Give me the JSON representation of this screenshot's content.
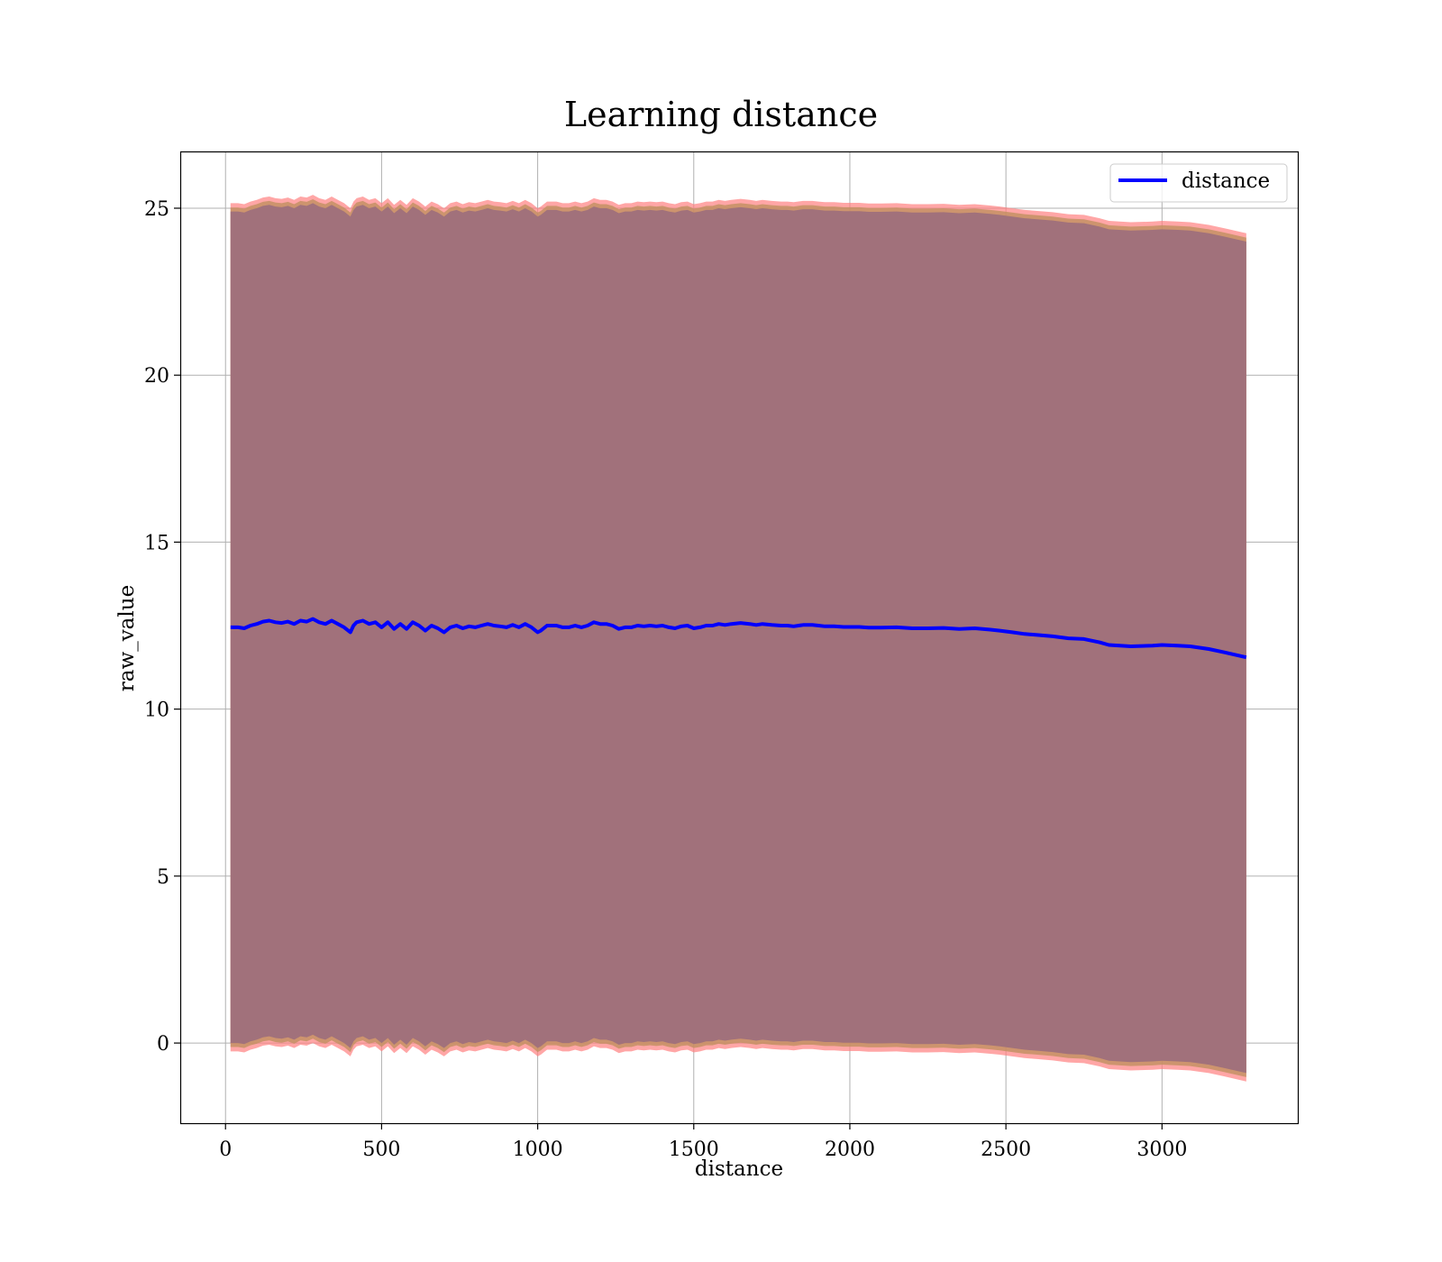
{
  "chart_data": {
    "type": "line",
    "title": "Learning distance",
    "xlabel": "distance",
    "ylabel": "raw_value",
    "xlim": [
      -145,
      3435
    ],
    "ylim": [
      -2.4,
      26.7
    ],
    "xticks": [
      0,
      500,
      1000,
      1500,
      2000,
      2500,
      3000
    ],
    "yticks": [
      0,
      5,
      10,
      15,
      20,
      25
    ],
    "grid": true,
    "legend": {
      "placement": "top-right",
      "entries": [
        "distance"
      ]
    },
    "colors": {
      "line": "#0000ff",
      "fill": "#a1717b",
      "outer_band": "#ff8080",
      "inner_band": "#c09060",
      "grid": "#b0b0b0"
    },
    "series": [
      {
        "name": "distance",
        "x": [
          16,
          40,
          60,
          80,
          100,
          120,
          140,
          160,
          180,
          200,
          220,
          240,
          260,
          280,
          300,
          320,
          340,
          360,
          380,
          400,
          410,
          420,
          440,
          460,
          480,
          500,
          520,
          540,
          560,
          580,
          600,
          620,
          640,
          660,
          680,
          700,
          720,
          740,
          760,
          780,
          800,
          820,
          840,
          860,
          880,
          900,
          920,
          940,
          960,
          980,
          1000,
          1010,
          1030,
          1060,
          1080,
          1100,
          1120,
          1140,
          1160,
          1180,
          1200,
          1220,
          1240,
          1260,
          1280,
          1300,
          1320,
          1340,
          1360,
          1380,
          1400,
          1420,
          1440,
          1460,
          1480,
          1500,
          1520,
          1540,
          1560,
          1580,
          1600,
          1620,
          1650,
          1680,
          1700,
          1720,
          1750,
          1780,
          1800,
          1820,
          1850,
          1880,
          1900,
          1920,
          1950,
          1980,
          2000,
          2030,
          2060,
          2100,
          2150,
          2200,
          2250,
          2300,
          2350,
          2400,
          2450,
          2480,
          2520,
          2560,
          2600,
          2650,
          2700,
          2750,
          2800,
          2830,
          2900,
          2970,
          3000,
          3050,
          3090,
          3150,
          3200,
          3270
        ],
        "y": [
          12.45,
          12.45,
          12.42,
          12.5,
          12.55,
          12.62,
          12.65,
          12.6,
          12.58,
          12.62,
          12.55,
          12.65,
          12.62,
          12.7,
          12.6,
          12.55,
          12.65,
          12.55,
          12.45,
          12.3,
          12.5,
          12.6,
          12.65,
          12.55,
          12.6,
          12.45,
          12.6,
          12.4,
          12.55,
          12.4,
          12.6,
          12.5,
          12.35,
          12.5,
          12.42,
          12.3,
          12.45,
          12.5,
          12.42,
          12.48,
          12.45,
          12.5,
          12.55,
          12.5,
          12.48,
          12.45,
          12.52,
          12.45,
          12.55,
          12.45,
          12.3,
          12.35,
          12.5,
          12.5,
          12.45,
          12.45,
          12.5,
          12.45,
          12.5,
          12.6,
          12.55,
          12.55,
          12.5,
          12.4,
          12.45,
          12.45,
          12.5,
          12.48,
          12.5,
          12.48,
          12.5,
          12.45,
          12.42,
          12.48,
          12.5,
          12.42,
          12.45,
          12.5,
          12.5,
          12.55,
          12.52,
          12.55,
          12.58,
          12.55,
          12.52,
          12.55,
          12.52,
          12.5,
          12.5,
          12.48,
          12.52,
          12.52,
          12.5,
          12.48,
          12.48,
          12.46,
          12.46,
          12.46,
          12.44,
          12.44,
          12.45,
          12.42,
          12.42,
          12.43,
          12.4,
          12.42,
          12.38,
          12.35,
          12.3,
          12.25,
          12.22,
          12.18,
          12.12,
          12.1,
          12.0,
          11.92,
          11.88,
          11.9,
          11.92,
          11.9,
          11.88,
          11.8,
          11.7,
          11.55
        ]
      }
    ]
  }
}
